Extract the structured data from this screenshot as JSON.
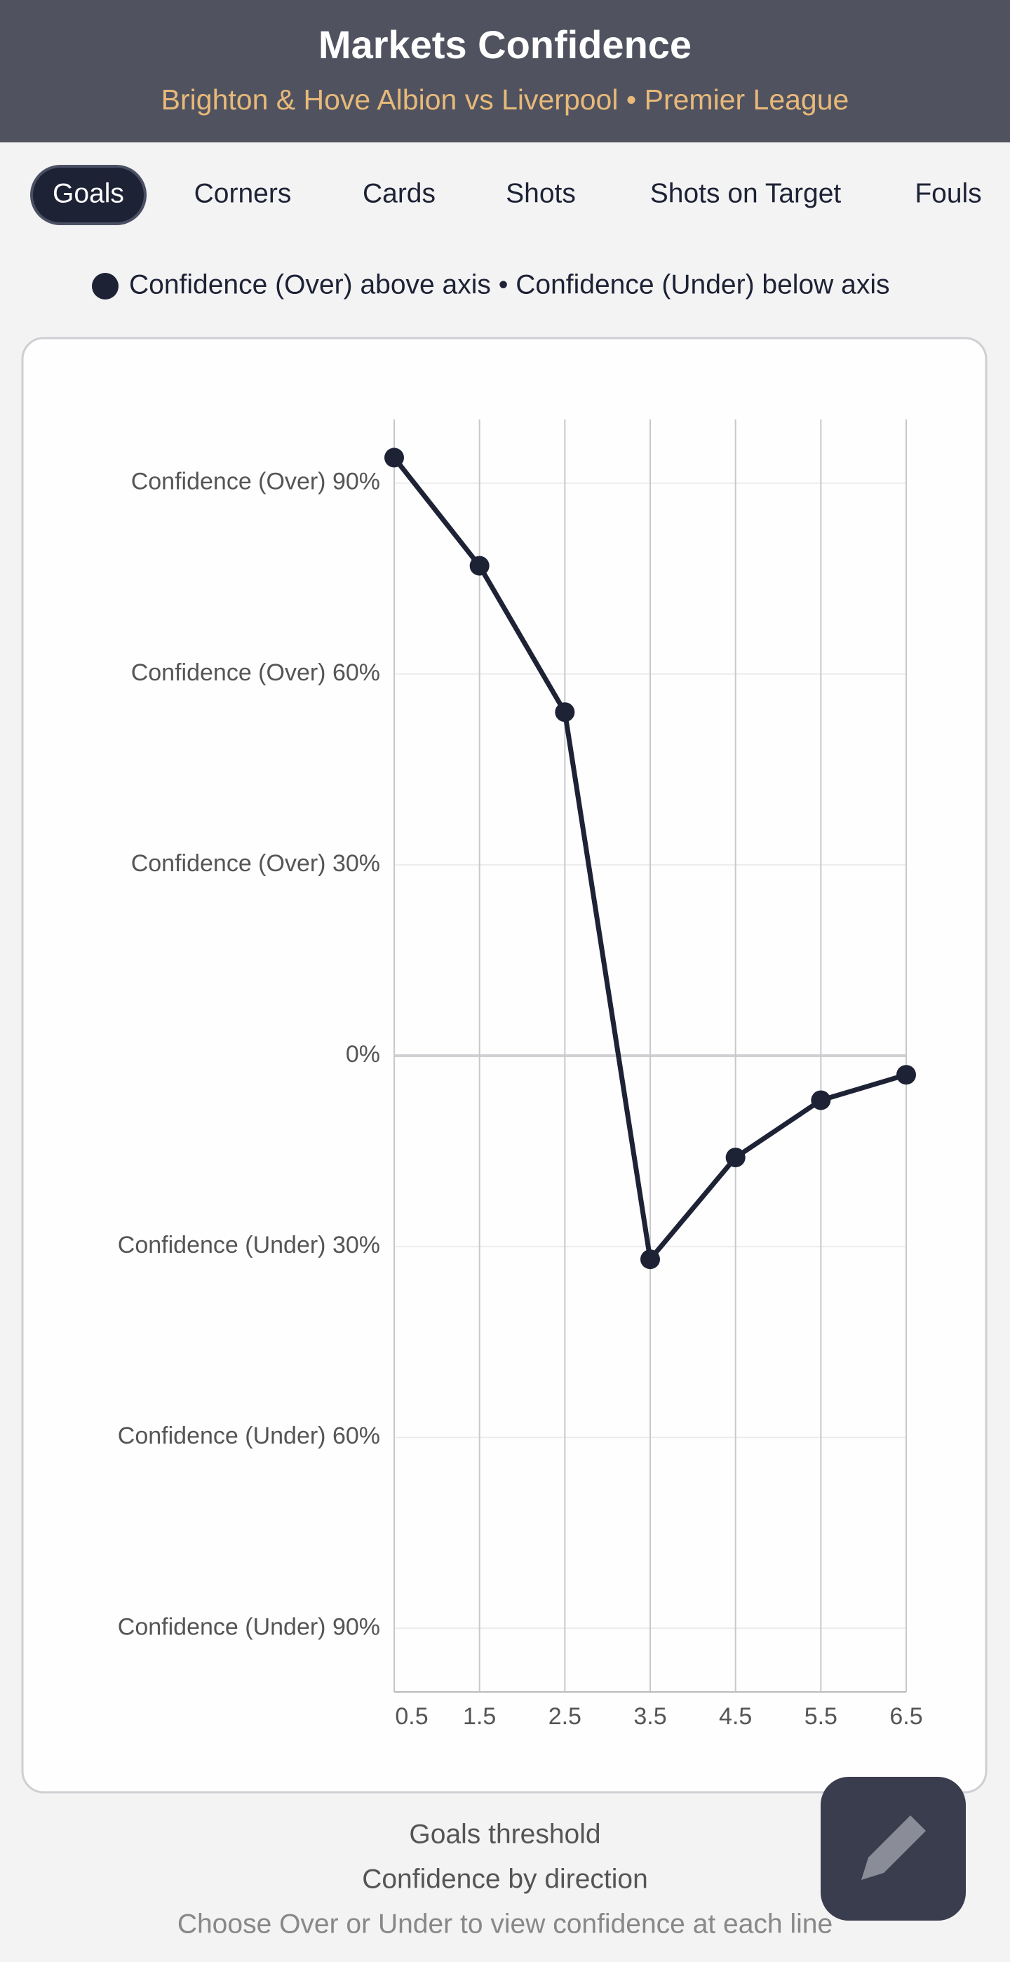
{
  "header": {
    "title": "Markets Confidence",
    "subtitle": "Brighton & Hove Albion vs Liverpool • Premier League"
  },
  "tabs": [
    {
      "label": "Goals",
      "selected": true
    },
    {
      "label": "Corners"
    },
    {
      "label": "Cards"
    },
    {
      "label": "Shots"
    },
    {
      "label": "Shots on Target"
    },
    {
      "label": "Fouls"
    }
  ],
  "chart_data": {
    "type": "line",
    "x": [
      0.5,
      1.5,
      2.5,
      3.5,
      4.5,
      5.5,
      6.5
    ],
    "series": [
      {
        "name": "Confidence (Over) above axis • Confidence (Under) below axis",
        "color": "#1e2235",
        "values": [
          94,
          77,
          54,
          -32,
          -16,
          -7,
          -3
        ]
      }
    ],
    "xlim": [
      0.5,
      6.5
    ],
    "xticks": [
      0.5,
      1.5,
      2.5,
      3.5,
      4.5,
      5.5,
      6.5
    ],
    "ylim": [
      -100,
      100
    ],
    "yticks": [
      {
        "value": 90,
        "label": "Confidence (Over) 90%"
      },
      {
        "value": 60,
        "label": "Confidence (Over) 60%"
      },
      {
        "value": 30,
        "label": "Confidence (Over) 30%"
      },
      {
        "value": 0,
        "label": "0%"
      },
      {
        "value": -30,
        "label": "Confidence (Under) 30%"
      },
      {
        "value": -60,
        "label": "Confidence (Under) 60%"
      },
      {
        "value": -90,
        "label": "Confidence (Under) 90%"
      }
    ],
    "grid": true
  },
  "footer": {
    "line1": "Goals threshold",
    "line2": "Confidence by direction",
    "line3": "Choose Over or Under to view confidence at each line"
  }
}
